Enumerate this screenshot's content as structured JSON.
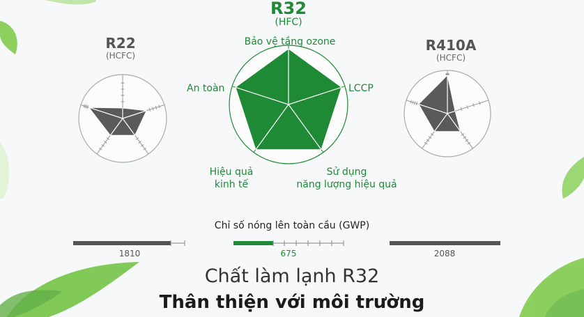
{
  "compounds": {
    "r22": {
      "name": "R22",
      "type": "(HCFC)"
    },
    "r32": {
      "name": "R32",
      "type": "(HFC)"
    },
    "r410a": {
      "name": "R410A",
      "type": "(HCFC)"
    }
  },
  "axes": {
    "ozone": "Bảo vệ tầng ozone",
    "lccp": "LCCP",
    "energy_line1": "Sử dụng",
    "energy_line2": "năng lượng hiệu quả",
    "economic_line1": "Hiệu quả",
    "economic_line2": "kinh tế",
    "safety": "An toàn"
  },
  "radar_levels": {
    "r22": [
      0.25,
      0.6,
      0.5,
      0.5,
      0.85
    ],
    "r32": [
      1.0,
      1.0,
      1.0,
      1.0,
      1.0
    ],
    "r410a": [
      0.95,
      0.2,
      0.55,
      0.55,
      0.75
    ]
  },
  "gwp": {
    "title": "Chỉ số nóng lên toàn cầu (GWP)",
    "r22_value": "1810",
    "r32_value": "675",
    "r410a_value": "2088"
  },
  "footer": {
    "line1": "Chất làm lạnh R32",
    "line2": "Thân thiện với môi trường"
  },
  "colors": {
    "green": "#1f8a35",
    "dark_gray": "#555555",
    "radar_gray": "#5a5a5a"
  }
}
